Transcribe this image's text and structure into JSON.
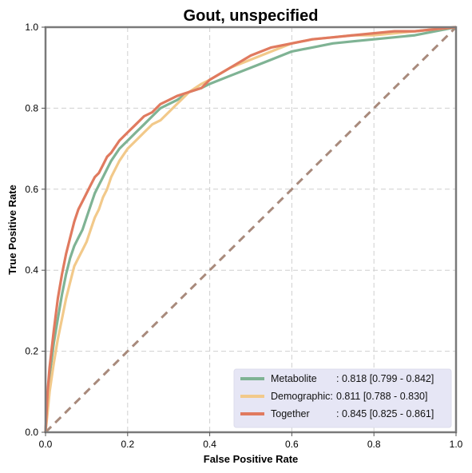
{
  "chart_data": {
    "type": "line",
    "title": "Gout, unspecified",
    "xlabel": "False Positive Rate",
    "ylabel": "True Positive Rate",
    "xlim": [
      0,
      1
    ],
    "ylim": [
      0,
      1
    ],
    "xticks": [
      "0.0",
      "0.2",
      "0.4",
      "0.6",
      "0.8",
      "1.0"
    ],
    "yticks": [
      "0.0",
      "0.2",
      "0.4",
      "0.6",
      "0.8",
      "1.0"
    ],
    "grid": true,
    "legend_position": "bottom-right",
    "series": [
      {
        "name": "Metabolite",
        "auc_label": ": 0.818 [0.799 - 0.842]",
        "color": "#7fb394",
        "x": [
          0,
          0.005,
          0.01,
          0.02,
          0.03,
          0.04,
          0.05,
          0.06,
          0.07,
          0.08,
          0.09,
          0.1,
          0.11,
          0.12,
          0.13,
          0.14,
          0.15,
          0.16,
          0.18,
          0.2,
          0.22,
          0.24,
          0.26,
          0.28,
          0.3,
          0.32,
          0.35,
          0.38,
          0.4,
          0.45,
          0.5,
          0.55,
          0.6,
          0.65,
          0.7,
          0.75,
          0.8,
          0.85,
          0.9,
          0.95,
          1.0
        ],
        "y": [
          0,
          0.08,
          0.14,
          0.22,
          0.28,
          0.34,
          0.39,
          0.43,
          0.46,
          0.48,
          0.5,
          0.53,
          0.56,
          0.59,
          0.61,
          0.63,
          0.65,
          0.67,
          0.7,
          0.72,
          0.74,
          0.76,
          0.78,
          0.8,
          0.81,
          0.82,
          0.84,
          0.85,
          0.86,
          0.88,
          0.9,
          0.92,
          0.94,
          0.95,
          0.96,
          0.965,
          0.97,
          0.975,
          0.98,
          0.99,
          1.0
        ]
      },
      {
        "name": "Demographic:",
        "auc_label": " 0.811 [0.788 - 0.830]",
        "color": "#f2c98a",
        "x": [
          0,
          0.005,
          0.01,
          0.02,
          0.03,
          0.04,
          0.05,
          0.06,
          0.07,
          0.08,
          0.09,
          0.1,
          0.11,
          0.12,
          0.13,
          0.14,
          0.15,
          0.16,
          0.18,
          0.2,
          0.22,
          0.24,
          0.26,
          0.28,
          0.3,
          0.32,
          0.35,
          0.38,
          0.4,
          0.45,
          0.5,
          0.55,
          0.6,
          0.65,
          0.7,
          0.75,
          0.8,
          0.85,
          0.9,
          0.95,
          1.0
        ],
        "y": [
          0,
          0.05,
          0.1,
          0.17,
          0.23,
          0.28,
          0.33,
          0.37,
          0.41,
          0.43,
          0.45,
          0.47,
          0.5,
          0.53,
          0.55,
          0.58,
          0.6,
          0.63,
          0.67,
          0.7,
          0.72,
          0.74,
          0.76,
          0.77,
          0.79,
          0.81,
          0.84,
          0.86,
          0.87,
          0.9,
          0.92,
          0.94,
          0.96,
          0.97,
          0.975,
          0.98,
          0.98,
          0.985,
          0.99,
          0.995,
          1.0
        ]
      },
      {
        "name": "Together",
        "auc_label": ": 0.845 [0.825 - 0.861]",
        "color": "#e07a5f",
        "x": [
          0,
          0.005,
          0.01,
          0.02,
          0.03,
          0.04,
          0.05,
          0.06,
          0.07,
          0.08,
          0.09,
          0.1,
          0.11,
          0.12,
          0.13,
          0.14,
          0.15,
          0.16,
          0.18,
          0.2,
          0.22,
          0.24,
          0.26,
          0.28,
          0.3,
          0.32,
          0.35,
          0.38,
          0.4,
          0.45,
          0.5,
          0.55,
          0.6,
          0.65,
          0.7,
          0.75,
          0.8,
          0.85,
          0.9,
          0.95,
          1.0
        ],
        "y": [
          0,
          0.1,
          0.16,
          0.25,
          0.33,
          0.39,
          0.44,
          0.48,
          0.52,
          0.55,
          0.57,
          0.59,
          0.61,
          0.63,
          0.64,
          0.66,
          0.68,
          0.69,
          0.72,
          0.74,
          0.76,
          0.78,
          0.79,
          0.81,
          0.82,
          0.83,
          0.84,
          0.85,
          0.87,
          0.9,
          0.93,
          0.95,
          0.96,
          0.97,
          0.975,
          0.98,
          0.985,
          0.99,
          0.99,
          0.995,
          1.0
        ]
      }
    ],
    "reference_line": {
      "x": [
        0,
        1
      ],
      "y": [
        0,
        1
      ],
      "color": "#a88a7c",
      "style": "dashed"
    },
    "legend_background": "#e6e6f5"
  }
}
